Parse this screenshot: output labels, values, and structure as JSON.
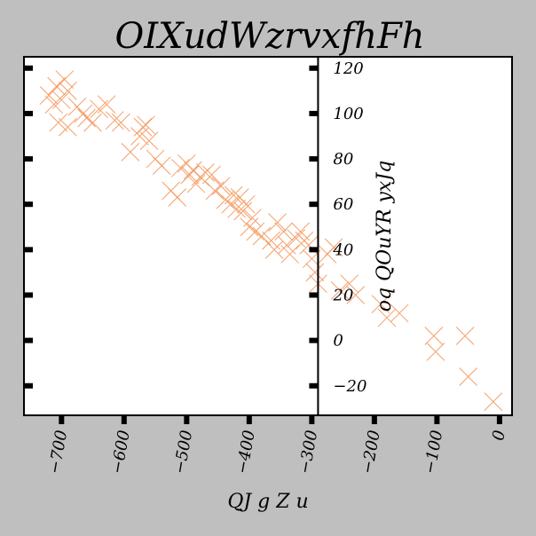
{
  "chart_data": {
    "type": "scatter",
    "title": "OIXudWzrvxfhFh",
    "xlabel": "QJ g Z u",
    "ylabel": "oq QOuYR yxJq",
    "xlim": [
      -760,
      20
    ],
    "ylim": [
      -33,
      125
    ],
    "xticks": [
      -700,
      -600,
      -500,
      -400,
      -300,
      -200,
      -100,
      0
    ],
    "xtick_labels": [
      "−700",
      "−600",
      "−500",
      "−400",
      "−300",
      "−200",
      "−100",
      "0"
    ],
    "yticks": [
      -20,
      0,
      20,
      40,
      60,
      80,
      100,
      120
    ],
    "ytick_labels": [
      "−20",
      "0",
      "20",
      "40",
      "60",
      "80",
      "100",
      "120"
    ],
    "yaxis_position_x": -290,
    "grid": false,
    "marker": "x",
    "color": "#f5a06a",
    "points": [
      [
        -720,
        108
      ],
      [
        -712,
        104
      ],
      [
        -708,
        112
      ],
      [
        -700,
        106
      ],
      [
        -695,
        115
      ],
      [
        -690,
        110
      ],
      [
        -705,
        96
      ],
      [
        -690,
        94
      ],
      [
        -675,
        103
      ],
      [
        -665,
        100
      ],
      [
        -660,
        98
      ],
      [
        -650,
        96
      ],
      [
        -640,
        102
      ],
      [
        -628,
        104
      ],
      [
        -615,
        97
      ],
      [
        -605,
        96
      ],
      [
        -590,
        83
      ],
      [
        -575,
        90
      ],
      [
        -570,
        94
      ],
      [
        -565,
        95
      ],
      [
        -560,
        88
      ],
      [
        -550,
        80
      ],
      [
        -540,
        77
      ],
      [
        -525,
        66
      ],
      [
        -515,
        63
      ],
      [
        -510,
        76
      ],
      [
        -500,
        78
      ],
      [
        -495,
        73
      ],
      [
        -490,
        75
      ],
      [
        -485,
        69
      ],
      [
        -478,
        72
      ],
      [
        -470,
        74
      ],
      [
        -460,
        73
      ],
      [
        -455,
        66
      ],
      [
        -445,
        68
      ],
      [
        -438,
        62
      ],
      [
        -430,
        60
      ],
      [
        -425,
        64
      ],
      [
        -420,
        58
      ],
      [
        -415,
        63
      ],
      [
        -410,
        57
      ],
      [
        -405,
        60
      ],
      [
        -400,
        50
      ],
      [
        -395,
        54
      ],
      [
        -390,
        48
      ],
      [
        -380,
        46
      ],
      [
        -365,
        44
      ],
      [
        -360,
        40
      ],
      [
        -355,
        52
      ],
      [
        -345,
        48
      ],
      [
        -340,
        42
      ],
      [
        -335,
        38
      ],
      [
        -325,
        45
      ],
      [
        -318,
        48
      ],
      [
        -312,
        44
      ],
      [
        -305,
        42
      ],
      [
        -300,
        36
      ],
      [
        -295,
        30
      ],
      [
        -290,
        25
      ],
      [
        -275,
        38
      ],
      [
        -265,
        41
      ],
      [
        -255,
        22
      ],
      [
        -240,
        25
      ],
      [
        -230,
        20
      ],
      [
        -190,
        16
      ],
      [
        -180,
        10
      ],
      [
        -160,
        12
      ],
      [
        -105,
        2
      ],
      [
        -102,
        -5
      ],
      [
        -55,
        2
      ],
      [
        -50,
        -16
      ],
      [
        -10,
        -27
      ]
    ]
  }
}
